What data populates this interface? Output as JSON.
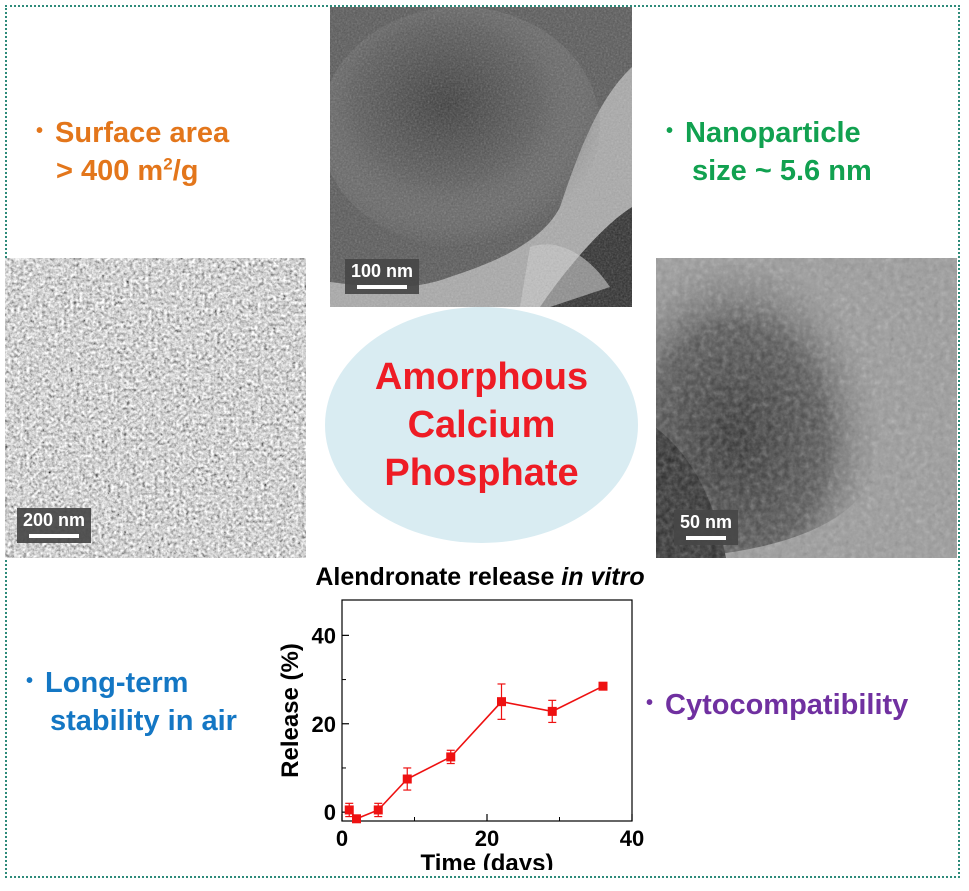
{
  "features": {
    "surface_area_line1": "Surface area",
    "surface_area_line2_prefix": "> 400 m",
    "surface_area_sup": "2",
    "surface_area_line2_suffix": "/g",
    "nanoparticle_line1": "Nanoparticle",
    "nanoparticle_line2": "size ~ 5.6 nm",
    "stability_line1": "Long-term",
    "stability_line2": "stability in air",
    "cytocompatibility": "Cytocompatibility",
    "bullet": "•"
  },
  "colors": {
    "surface_area": "#e3761b",
    "nanoparticle": "#11a150",
    "stability": "#1477c4",
    "cytocompatibility": "#7030a0",
    "center_text": "#ee1c25",
    "center_fill": "#d9ecf2",
    "series": "#ee1111",
    "frame": "#2e8b7a"
  },
  "center": {
    "line1": "Amorphous",
    "line2": "Calcium",
    "line3": "Phosphate"
  },
  "scalebars": {
    "top_tem": "100 nm",
    "left_sem": "200 nm",
    "right_tem": "50 nm"
  },
  "chart_data": {
    "type": "line",
    "title_prefix": "Alendronate release ",
    "title_italic": "in vitro",
    "xlabel": "Time (days)",
    "ylabel": "Release (%)",
    "xlim": [
      0,
      40
    ],
    "ylim": [
      -2,
      48
    ],
    "xticks": [
      0,
      20,
      40
    ],
    "yticks": [
      0,
      20,
      40
    ],
    "x": [
      1,
      2,
      5,
      9,
      15,
      22,
      29,
      36
    ],
    "y": [
      0.5,
      -1.5,
      0.5,
      7.5,
      12.5,
      25,
      22.8,
      28.5
    ],
    "err": [
      1.5,
      0.5,
      1.5,
      2.5,
      1.5,
      4,
      2.5,
      0.8
    ],
    "grid": false
  }
}
